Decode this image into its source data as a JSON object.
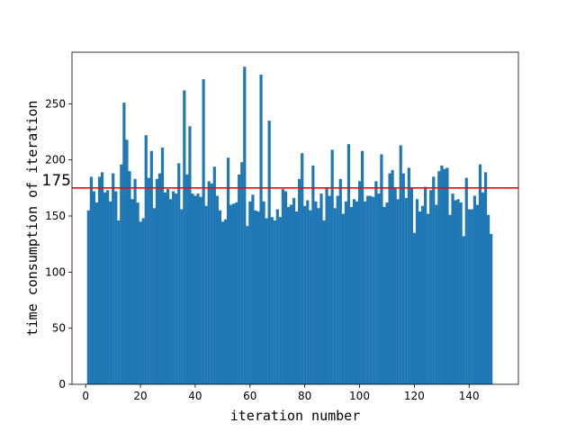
{
  "chart_data": {
    "type": "bar",
    "title": "",
    "xlabel": "iteration number",
    "ylabel": "time consumption of iteration",
    "xlim": [
      -5,
      158
    ],
    "ylim": [
      0,
      296
    ],
    "xticks": [
      0,
      20,
      40,
      60,
      80,
      100,
      120,
      140
    ],
    "yticks": [
      0,
      50,
      100,
      150,
      200,
      250
    ],
    "bar_color": "#1f77b4",
    "grid": false,
    "legend": "none",
    "reference_line": {
      "y": 175,
      "label": "175",
      "color": "#ff0000"
    },
    "x": [
      1,
      2,
      3,
      4,
      5,
      6,
      7,
      8,
      9,
      10,
      11,
      12,
      13,
      14,
      15,
      16,
      17,
      18,
      19,
      20,
      21,
      22,
      23,
      24,
      25,
      26,
      27,
      28,
      29,
      30,
      31,
      32,
      33,
      34,
      35,
      36,
      37,
      38,
      39,
      40,
      41,
      42,
      43,
      44,
      45,
      46,
      47,
      48,
      49,
      50,
      51,
      52,
      53,
      54,
      55,
      56,
      57,
      58,
      59,
      60,
      61,
      62,
      63,
      64,
      65,
      66,
      67,
      68,
      69,
      70,
      71,
      72,
      73,
      74,
      75,
      76,
      77,
      78,
      79,
      80,
      81,
      82,
      83,
      84,
      85,
      86,
      87,
      88,
      89,
      90,
      91,
      92,
      93,
      94,
      95,
      96,
      97,
      98,
      99,
      100,
      101,
      102,
      103,
      104,
      105,
      106,
      107,
      108,
      109,
      110,
      111,
      112,
      113,
      114,
      115,
      116,
      117,
      118,
      119,
      120,
      121,
      122,
      123,
      124,
      125,
      126,
      127,
      128,
      129,
      130,
      131,
      132,
      133,
      134,
      135,
      136,
      137,
      138,
      139,
      140,
      141,
      142,
      143,
      144,
      145,
      146,
      147,
      148
    ],
    "values": [
      155,
      185,
      172,
      162,
      185,
      189,
      171,
      173,
      163,
      188,
      172,
      146,
      196,
      251,
      218,
      190,
      165,
      183,
      162,
      145,
      148,
      222,
      184,
      208,
      157,
      183,
      188,
      211,
      171,
      174,
      165,
      172,
      170,
      197,
      156,
      262,
      187,
      230,
      170,
      168,
      170,
      167,
      272,
      159,
      181,
      179,
      194,
      168,
      155,
      145,
      147,
      202,
      160,
      161,
      162,
      187,
      198,
      283,
      141,
      163,
      169,
      155,
      154,
      276,
      163,
      148,
      235,
      149,
      146,
      156,
      149,
      174,
      172,
      158,
      160,
      166,
      154,
      183,
      206,
      159,
      164,
      155,
      195,
      163,
      157,
      170,
      146,
      175,
      168,
      209,
      157,
      168,
      183,
      152,
      163,
      214,
      158,
      165,
      163,
      181,
      208,
      163,
      168,
      168,
      167,
      181,
      170,
      205,
      158,
      162,
      188,
      191,
      175,
      165,
      213,
      188,
      166,
      193,
      175,
      135,
      165,
      154,
      159,
      176,
      152,
      173,
      185,
      160,
      190,
      195,
      192,
      193,
      151,
      170,
      164,
      165,
      162,
      132,
      184,
      156,
      156,
      168,
      160,
      196,
      171,
      189,
      151,
      134
    ]
  }
}
